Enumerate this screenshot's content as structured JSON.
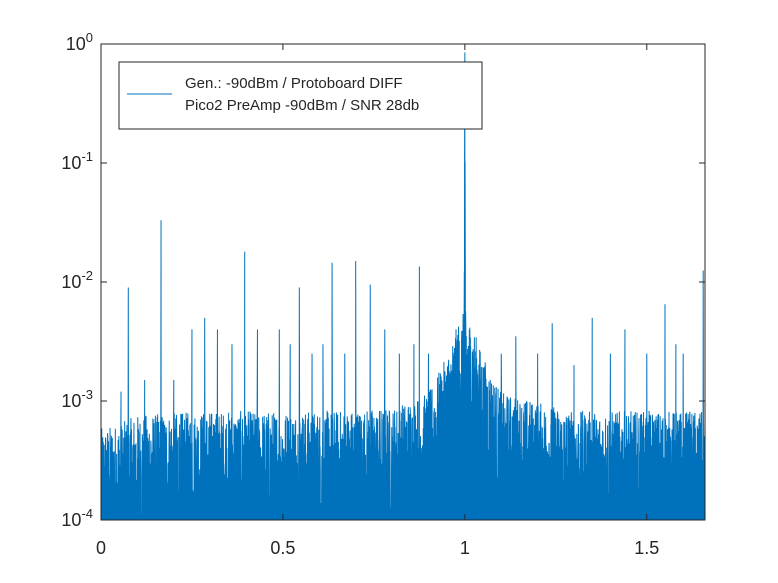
{
  "chart_data": {
    "type": "line",
    "title": "",
    "xlabel": "",
    "ylabel": "",
    "yscale": "log",
    "xlim": [
      0,
      1.66
    ],
    "ylim": [
      0.0001,
      1
    ],
    "grid": false,
    "legend_position": "top-left",
    "x_ticks": [
      {
        "value": 0,
        "label": "0"
      },
      {
        "value": 0.5,
        "label": "0.5"
      },
      {
        "value": 1,
        "label": "1"
      },
      {
        "value": 1.5,
        "label": "1.5"
      }
    ],
    "y_ticks": [
      {
        "value": 0.0001,
        "base": "10",
        "exp": "-4"
      },
      {
        "value": 0.001,
        "base": "10",
        "exp": "-3"
      },
      {
        "value": 0.01,
        "base": "10",
        "exp": "-2"
      },
      {
        "value": 0.1,
        "base": "10",
        "exp": "-1"
      },
      {
        "value": 1,
        "base": "10",
        "exp": "0"
      }
    ],
    "series": [
      {
        "name": "Gen.: -90dBm / Protoboard DIFF\nPico2 PreAmp -90dBm / SNR 28db",
        "color": "#0072BD",
        "noise_floor": [
          [
            0.0,
            0.0002
          ],
          [
            0.05,
            0.00022
          ],
          [
            0.1,
            0.00026
          ],
          [
            0.3,
            0.00028
          ],
          [
            0.6,
            0.00028
          ],
          [
            0.8,
            0.0003
          ],
          [
            0.9,
            0.0004
          ],
          [
            0.95,
            0.0008
          ],
          [
            0.98,
            0.0015
          ],
          [
            1.0,
            0.002
          ],
          [
            1.02,
            0.0015
          ],
          [
            1.05,
            0.0008
          ],
          [
            1.1,
            0.0004
          ],
          [
            1.3,
            0.00028
          ],
          [
            1.66,
            0.00028
          ]
        ],
        "peaks": [
          [
            0.02,
            0.00045
          ],
          [
            0.055,
            0.0012
          ],
          [
            0.075,
            0.009
          ],
          [
            0.12,
            0.0015
          ],
          [
            0.165,
            0.033
          ],
          [
            0.2,
            0.0015
          ],
          [
            0.25,
            0.004
          ],
          [
            0.285,
            0.005
          ],
          [
            0.32,
            0.004
          ],
          [
            0.36,
            0.003
          ],
          [
            0.395,
            0.018
          ],
          [
            0.43,
            0.004
          ],
          [
            0.49,
            0.004
          ],
          [
            0.52,
            0.003
          ],
          [
            0.545,
            0.009
          ],
          [
            0.58,
            0.0025
          ],
          [
            0.61,
            0.003
          ],
          [
            0.635,
            0.0145
          ],
          [
            0.67,
            0.0025
          ],
          [
            0.7,
            0.015
          ],
          [
            0.74,
            0.0095
          ],
          [
            0.78,
            0.004
          ],
          [
            0.82,
            0.0025
          ],
          [
            0.86,
            0.003
          ],
          [
            0.875,
            0.0135
          ],
          [
            0.9,
            0.0025
          ],
          [
            1.0,
            0.85
          ],
          [
            1.1,
            0.0025
          ],
          [
            1.14,
            0.0035
          ],
          [
            1.2,
            0.0025
          ],
          [
            1.24,
            0.0045
          ],
          [
            1.3,
            0.002
          ],
          [
            1.35,
            0.005
          ],
          [
            1.4,
            0.0025
          ],
          [
            1.44,
            0.004
          ],
          [
            1.5,
            0.0025
          ],
          [
            1.55,
            0.0065
          ],
          [
            1.58,
            0.003
          ],
          [
            1.6,
            0.0025
          ],
          [
            1.655,
            0.0125
          ]
        ]
      }
    ]
  }
}
